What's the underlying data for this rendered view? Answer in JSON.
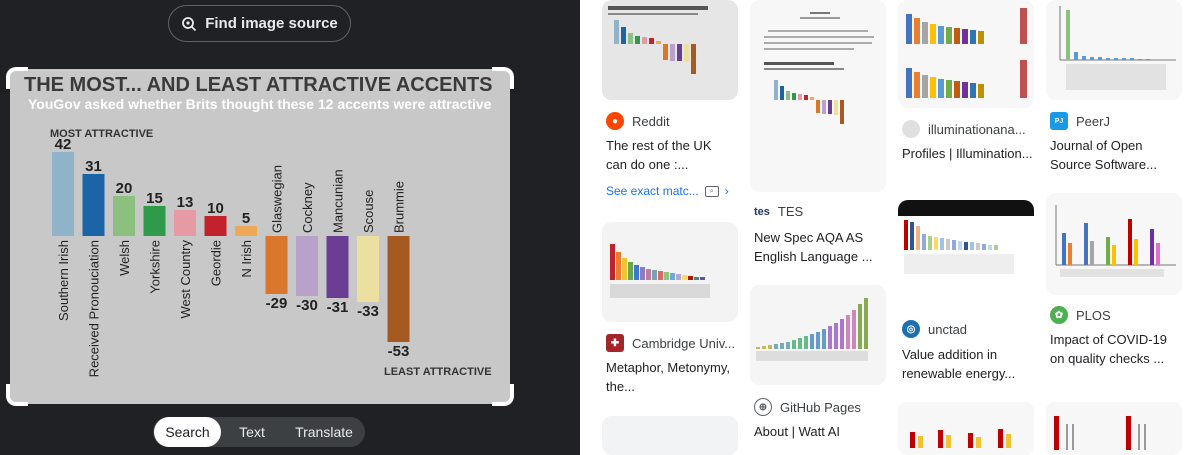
{
  "find_button": {
    "label": "Find image source",
    "icon": "lens-search-icon"
  },
  "tabs": [
    {
      "label": "Search",
      "active": true
    },
    {
      "label": "Text",
      "active": false
    },
    {
      "label": "Translate",
      "active": false
    }
  ],
  "chart_data": {
    "type": "bar",
    "title": "THE MOST... AND LEAST ATTRACTIVE ACCENTS",
    "subtitle": "YouGov asked whether Brits thought these 12 accents were attractive",
    "top_label": "MOST ATTRACTIVE",
    "bottom_label": "LEAST ATTRACTIVE",
    "categories": [
      "Southern Irish",
      "Received Pronouciation",
      "Welsh",
      "Yorkshire",
      "West Country",
      "Geordie",
      "N Irish",
      "Glaswegian",
      "Cockney",
      "Mancunian",
      "Scouse",
      "Brummie"
    ],
    "values": [
      42,
      31,
      20,
      15,
      13,
      10,
      5,
      -29,
      -30,
      -31,
      -33,
      -53
    ],
    "value_labels": [
      "42",
      "31",
      "20",
      "15",
      "13",
      "10",
      "5",
      "-29",
      "-30",
      "-31",
      "-33",
      "-53"
    ],
    "colors": [
      "#8fb3c9",
      "#1c64a8",
      "#8cc07e",
      "#2e9a4a",
      "#e59aa4",
      "#c2222b",
      "#efa857",
      "#d9782c",
      "#b9a2c9",
      "#6a3f93",
      "#ece0a0",
      "#a65a22"
    ]
  },
  "results": {
    "col1": [
      {
        "source": "Reddit",
        "title": "The rest of the UK can do one :...",
        "see_exact": "See exact matc...",
        "icon_color": "#ff4500"
      },
      {
        "source": "Cambridge Univ...",
        "title": "Metaphor, Metonymy, the...",
        "icon_color": "#a3262a"
      }
    ],
    "col2": [
      {
        "source": "TES",
        "title": "New Spec AQA AS English Language ...",
        "icon_text": "tes"
      },
      {
        "source": "GitHub Pages",
        "title": "About | Watt AI"
      }
    ],
    "col3": [
      {
        "source": "illuminationana...",
        "title": "Profiles | Illumination..."
      },
      {
        "source": "unctad",
        "title": "Value addition in renewable energy...",
        "icon_color": "#1d6fb3"
      }
    ],
    "col4": [
      {
        "source": "PeerJ",
        "title": "Journal of Open Source Software...",
        "icon_color": "#1a9ae6"
      },
      {
        "source": "PLOS",
        "title": "Impact of COVID-19 on quality checks ...",
        "icon_color": "#4caf50"
      }
    ]
  }
}
